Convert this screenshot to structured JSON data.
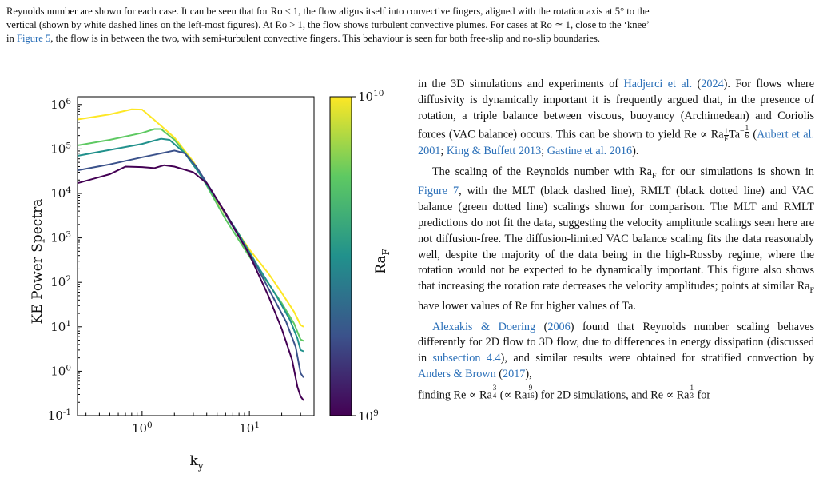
{
  "caption": {
    "line1": "Reynolds number are shown for each case. It can be seen that for Ro < 1, the flow aligns itself into convective fingers, aligned with the rotation axis at 5° to the",
    "line2a": "vertical (shown by white dashed lines on the left-most figures). At Ro > 1, the flow shows turbulent convective plumes. For cases at Ro ≃ 1, close to the ‘knee’",
    "line3_prefix": "in ",
    "line3_link": "Figure 5",
    "line3_suffix": ", the flow is in between the two, with semi-turbulent convective fingers. This behaviour is seen for both free-slip and no-slip boundaries."
  },
  "chart_data": {
    "type": "line",
    "xlabel": "k_y",
    "ylabel": "KE Power Spectra",
    "xscale": "log",
    "yscale": "log",
    "xlim": [
      0.25,
      40
    ],
    "ylim": [
      0.1,
      1500000
    ],
    "xticks": [
      "10^0",
      "10^1"
    ],
    "yticks": [
      "10^-1",
      "10^0",
      "10^1",
      "10^2",
      "10^3",
      "10^4",
      "10^5",
      "10^6"
    ],
    "colorbar": {
      "label": "Ra_F",
      "min_label": "10^9",
      "max_label": "10^10",
      "colors": [
        "#440154",
        "#3b528b",
        "#21918c",
        "#5ec962",
        "#fde725"
      ]
    },
    "series": [
      {
        "color": "#fde725",
        "points": [
          [
            0.25,
            460000
          ],
          [
            0.5,
            600000
          ],
          [
            0.8,
            780000
          ],
          [
            1.0,
            770000
          ],
          [
            1.3,
            450000
          ],
          [
            2.0,
            180000
          ],
          [
            3.0,
            52000
          ],
          [
            4.0,
            16000
          ],
          [
            6.0,
            3300
          ],
          [
            10.0,
            550
          ],
          [
            15.0,
            160
          ],
          [
            20.0,
            58
          ],
          [
            26.0,
            22
          ],
          [
            30.0,
            11
          ],
          [
            32.0,
            10
          ]
        ]
      },
      {
        "color": "#5ec962",
        "points": [
          [
            0.25,
            120000
          ],
          [
            0.5,
            160000
          ],
          [
            1.0,
            230000
          ],
          [
            1.3,
            280000
          ],
          [
            1.5,
            280000
          ],
          [
            2.0,
            160000
          ],
          [
            3.0,
            48000
          ],
          [
            4.0,
            15000
          ],
          [
            6.0,
            2600
          ],
          [
            10.0,
            380
          ],
          [
            15.0,
            95
          ],
          [
            20.0,
            34
          ],
          [
            26.0,
            12
          ],
          [
            30.0,
            5.2
          ],
          [
            32.0,
            4.8
          ]
        ]
      },
      {
        "color": "#21918c",
        "points": [
          [
            0.25,
            70000
          ],
          [
            0.5,
            95000
          ],
          [
            1.0,
            130000
          ],
          [
            1.5,
            170000
          ],
          [
            1.8,
            160000
          ],
          [
            2.5,
            80000
          ],
          [
            3.5,
            26000
          ],
          [
            5.0,
            7000
          ],
          [
            8.0,
            1200
          ],
          [
            12.0,
            230
          ],
          [
            18.0,
            48
          ],
          [
            24.0,
            14
          ],
          [
            28.0,
            5.5
          ],
          [
            30.0,
            3.0
          ],
          [
            32.0,
            2.8
          ]
        ]
      },
      {
        "color": "#3b528b",
        "points": [
          [
            0.25,
            33000
          ],
          [
            0.5,
            45000
          ],
          [
            1.0,
            65000
          ],
          [
            2.0,
            92000
          ],
          [
            2.5,
            80000
          ],
          [
            3.2,
            40000
          ],
          [
            4.5,
            11000
          ],
          [
            7.0,
            1800
          ],
          [
            11.0,
            300
          ],
          [
            16.0,
            55
          ],
          [
            22.0,
            13
          ],
          [
            27.0,
            3.5
          ],
          [
            30.0,
            0.9
          ],
          [
            32.0,
            0.72
          ]
        ]
      },
      {
        "color": "#440154",
        "points": [
          [
            0.25,
            17000
          ],
          [
            0.5,
            27000
          ],
          [
            0.7,
            40000
          ],
          [
            1.0,
            39000
          ],
          [
            1.3,
            37000
          ],
          [
            1.6,
            43000
          ],
          [
            2.0,
            40000
          ],
          [
            3.0,
            30000
          ],
          [
            4.0,
            17000
          ],
          [
            6.0,
            3600
          ],
          [
            10.0,
            420
          ],
          [
            15.0,
            50
          ],
          [
            20.0,
            9
          ],
          [
            25.0,
            1.8
          ],
          [
            28.0,
            0.45
          ],
          [
            30.0,
            0.27
          ],
          [
            32.0,
            0.22
          ]
        ]
      }
    ]
  },
  "body": {
    "p1a": "in the 3D simulations and experiments of ",
    "p1_link1": "Hadjerci et al.",
    "p1b": " (",
    "p1_link2": "2024",
    "p1c": "). For flows where diffusivity is dynamically important it is frequently argued that, in the presence of rotation, a triple balance between viscous, buoyancy (Archimedean) and Coriolis forces (VAC balance) occurs. This can be shown to yield Re ∝ Ra",
    "p1d": "Ta",
    "p1e": " (",
    "p1_link3": "Aubert et al. 2001",
    "p1f": "; ",
    "p1_link4": "King & Buffett 2013",
    "p1g": "; ",
    "p1_link5": "Gastine et al. 2016",
    "p1h": ").",
    "p2a": "The scaling of the Reynolds number with Ra",
    "p2b": " for our simulations is shown in ",
    "p2_link1": "Figure 7",
    "p2c": ", with the MLT (black dashed line), RMLT (black dotted line) and VAC balance (green dotted line) scalings shown for comparison. The MLT and RMLT predictions do not fit the data, suggesting the velocity amplitude scalings seen here are not diffusion-free. The diffusion-limited VAC balance scaling fits the data reasonably well, despite the majority of the data being in the high-Rossby regime, where the rotation would not be expected to be dynamically important. This figure also shows that increasing the rotation rate decreases the velocity amplitudes; points at similar Ra",
    "p2d": " have lower values of Re for higher values of Ta.",
    "p3_link1": "Alexakis & Doering",
    "p3a": " (",
    "p3_link2": "2006",
    "p3b": ") found that Reynolds number scaling behaves differently for 2D flow to 3D flow, due to differences in energy dissipation (discussed in ",
    "p3_link3": "subsection 4.4",
    "p3c": "), and similar results were obtained for stratified convection by ",
    "p3_link4": "Anders & Brown",
    "p3d": " (",
    "p3_link5": "2017",
    "p3e": "),",
    "p4a": "finding Re ∝ Ra",
    "p4b": " (∝ Ra",
    "p4c": ") for 2D simulations, and Re ∝ Ra",
    "p4d": " for",
    "sub_F": "F",
    "f_half_n": "1",
    "f_half_d": "2",
    "f_sixth_n": "1",
    "f_sixth_d": "6",
    "f_34_n": "3",
    "f_34_d": "4",
    "f_916_n": "9",
    "f_916_d": "16",
    "f_13_n": "1",
    "f_13_d": "3",
    "minus": "−"
  }
}
